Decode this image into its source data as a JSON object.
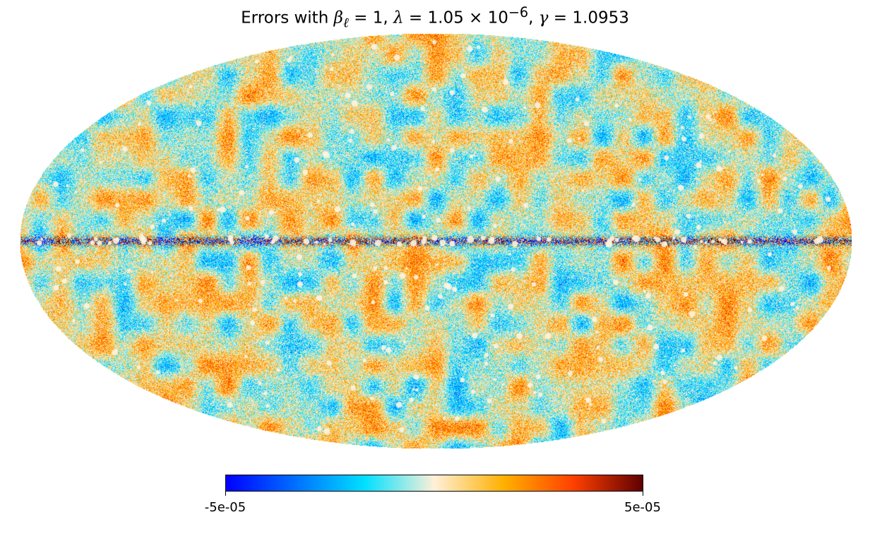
{
  "chart_data": {
    "type": "heatmap",
    "projection": "mollweide",
    "title_parts": {
      "prefix": "Errors with ",
      "beta": "β",
      "beta_sub": "ℓ",
      "beta_val": " = 1, ",
      "lambda": "λ",
      "lambda_val": " = 1.05 × 10",
      "lambda_exp": "−6",
      "sep": ", ",
      "gamma": "γ",
      "gamma_val": " = 1.0953"
    },
    "colorbar": {
      "min": -5e-05,
      "max": 5e-05,
      "min_label": "-5e-05",
      "max_label": "5e-05",
      "colors": [
        "#0000ff",
        "#0070ff",
        "#00e0ff",
        "#fff0d8",
        "#ffb000",
        "#ff4000",
        "#600000"
      ]
    },
    "features": {
      "galactic_plane_band": "dense high-contrast residuals along equator",
      "point_sources": "pale spots scattered across sky"
    }
  }
}
